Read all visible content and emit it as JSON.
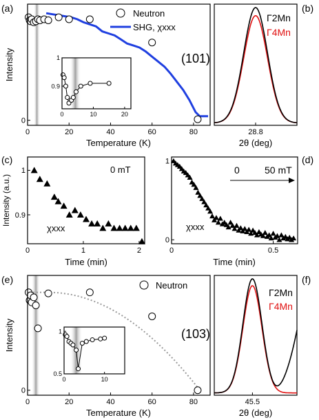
{
  "colors": {
    "shg": "#1f3fe0",
    "gamma4": "#e01010",
    "gamma2": "#000000",
    "dotted": "#999999",
    "shade": "#9a9a9a"
  },
  "panel_letters": [
    "(a)",
    "(b)",
    "(c)",
    "(d)",
    "(e)",
    "(f)"
  ],
  "chart_data": [
    {
      "id": "a",
      "type": "line+scatter",
      "xlabel": "Temperature (K)",
      "ylabel": "Intensity",
      "xlim": [
        0,
        88
      ],
      "ylim": [
        -0.05,
        1.15
      ],
      "xticks": [
        0,
        20,
        40,
        60,
        80
      ],
      "yticks": [
        0
      ],
      "legend": {
        "position": "top-right",
        "entries": [
          "Neutron",
          "SHG, χxxx"
        ]
      },
      "shaded_region_x": [
        3,
        6
      ],
      "series": [
        {
          "name": "Neutron",
          "marker": "open-circle",
          "x": [
            0.5,
            1,
            1.5,
            2,
            3,
            4,
            5,
            6,
            8,
            10,
            15,
            20,
            30,
            60,
            82
          ],
          "y": [
            1.02,
            0.99,
            0.98,
            1.0,
            0.97,
            0.98,
            1.0,
            0.99,
            1.0,
            0.99,
            1.02,
            1.0,
            1.0,
            0.77,
            0.01
          ]
        },
        {
          "name": "SHG, χxxx",
          "line": "solid",
          "x": [
            9,
            12,
            15,
            18,
            21,
            24,
            27,
            30,
            33,
            36,
            39,
            42,
            45,
            48,
            51,
            54,
            57,
            60,
            63,
            66,
            69,
            72,
            75,
            78,
            81,
            83,
            85,
            87
          ],
          "y": [
            1.06,
            1.05,
            1.04,
            1.03,
            1.02,
            1.0,
            0.97,
            0.95,
            0.93,
            0.88,
            0.86,
            0.84,
            0.8,
            0.76,
            0.74,
            0.72,
            0.68,
            0.63,
            0.58,
            0.53,
            0.46,
            0.38,
            0.3,
            0.2,
            0.08,
            0.04,
            0.04,
            0.04
          ]
        }
      ],
      "inset": {
        "xlim": [
          0,
          22
        ],
        "ylim": [
          0.82,
          1.0
        ],
        "xticks": [
          0,
          10,
          20
        ],
        "yticks": [
          1.0,
          0.9
        ],
        "shaded_region_x": [
          2.5,
          6
        ],
        "x": [
          0.3,
          0.7,
          1.2,
          1.7,
          2.2,
          3,
          3.6,
          4.5,
          6,
          9,
          15
        ],
        "y": [
          0.94,
          0.93,
          0.9,
          0.86,
          0.84,
          0.85,
          0.86,
          0.88,
          0.9,
          0.91,
          0.91
        ]
      }
    },
    {
      "id": "b",
      "type": "line",
      "xlabel": "2θ (deg)",
      "xticks": [
        28.8
      ],
      "xlim": [
        28.55,
        29.05
      ],
      "ylim": [
        0,
        1.05
      ],
      "peak_label": "(101)",
      "legend": {
        "position": "top-right",
        "entries": [
          "Γ2Mn",
          "Γ4Mn"
        ]
      },
      "series": [
        {
          "name": "Γ2Mn",
          "center": 28.8,
          "sigma": 0.072,
          "amplitude": 1.0
        },
        {
          "name": "Γ4Mn",
          "center": 28.8,
          "sigma": 0.072,
          "amplitude": 0.93
        }
      ]
    },
    {
      "id": "c",
      "type": "scatter",
      "xlabel": "Time (min)",
      "ylabel": "Intensity (a.u.)",
      "xlim": [
        0,
        2.1
      ],
      "ylim": [
        0.835,
        1.03
      ],
      "xticks": [
        0,
        1,
        2
      ],
      "yticks": [
        0.9,
        1.0
      ],
      "annotation": "0 mT",
      "series_label": "χxxx",
      "series": [
        {
          "name": "0 mT",
          "marker": "filled-triangle",
          "x": [
            0.12,
            0.22,
            0.35,
            0.48,
            0.55,
            0.65,
            0.75,
            0.85,
            0.95,
            1.05,
            1.15,
            1.25,
            1.35,
            1.45,
            1.55,
            1.65,
            1.75,
            1.85,
            1.95,
            2.05
          ],
          "y": [
            1.0,
            0.98,
            0.97,
            0.94,
            0.93,
            0.92,
            0.9,
            0.91,
            0.9,
            0.89,
            0.88,
            0.88,
            0.87,
            0.88,
            0.87,
            0.87,
            0.87,
            0.87,
            0.87,
            0.84
          ]
        }
      ]
    },
    {
      "id": "d",
      "type": "scatter",
      "xlabel": "Time (min)",
      "xlim": [
        0,
        0.62
      ],
      "ylim": [
        -0.05,
        1.05
      ],
      "xticks": [
        0.0,
        0.5
      ],
      "yticks": [
        0,
        1
      ],
      "annotation_start": "0",
      "annotation_end": "50 mT",
      "series_label": "χxxx",
      "series": [
        {
          "name": "50 mT",
          "marker": "filled-triangle",
          "x": [
            0.01,
            0.02,
            0.03,
            0.04,
            0.05,
            0.06,
            0.07,
            0.08,
            0.09,
            0.1,
            0.11,
            0.12,
            0.13,
            0.14,
            0.15,
            0.16,
            0.17,
            0.18,
            0.19,
            0.2,
            0.21,
            0.22,
            0.23,
            0.24,
            0.25,
            0.26,
            0.27,
            0.28,
            0.29,
            0.3,
            0.31,
            0.32,
            0.33,
            0.34,
            0.35,
            0.36,
            0.37,
            0.38,
            0.39,
            0.4,
            0.41,
            0.42,
            0.43,
            0.44,
            0.45,
            0.46,
            0.47,
            0.48,
            0.49,
            0.5,
            0.51,
            0.52,
            0.53,
            0.54,
            0.55,
            0.56,
            0.57,
            0.58,
            0.59,
            0.6
          ],
          "y": [
            1.0,
            0.97,
            0.95,
            0.93,
            0.9,
            0.87,
            0.85,
            0.82,
            0.79,
            0.73,
            0.7,
            0.66,
            0.6,
            0.56,
            0.52,
            0.48,
            0.44,
            0.4,
            0.36,
            0.3,
            0.25,
            0.28,
            0.22,
            0.27,
            0.2,
            0.22,
            0.19,
            0.16,
            0.22,
            0.18,
            0.14,
            0.18,
            0.12,
            0.15,
            0.11,
            0.14,
            0.1,
            0.13,
            0.08,
            0.12,
            0.09,
            0.06,
            0.1,
            0.07,
            0.05,
            0.09,
            0.04,
            0.06,
            0.02,
            0.08,
            0.03,
            0.05,
            0.0,
            0.06,
            0.02,
            0.04,
            0.01,
            0.03,
            0.0,
            0.02
          ]
        }
      ]
    },
    {
      "id": "e",
      "type": "line+scatter",
      "xlabel": "Temperature (K)",
      "ylabel": "Intensity",
      "xlim": [
        0,
        88
      ],
      "ylim": [
        -0.05,
        1.15
      ],
      "xticks": [
        0,
        20,
        40,
        60,
        80
      ],
      "yticks": [
        0
      ],
      "legend": {
        "position": "top-right",
        "entries": [
          "Neutron"
        ]
      },
      "shaded_region_x": [
        2,
        6
      ],
      "series": [
        {
          "name": "Neutron",
          "marker": "open-circle",
          "x": [
            0.5,
            1,
            1.5,
            2,
            3,
            4,
            5,
            10,
            30,
            60,
            82
          ],
          "y": [
            0.98,
            0.9,
            0.95,
            0.88,
            0.93,
            0.85,
            0.62,
            0.97,
            0.98,
            0.74,
            0.0
          ]
        },
        {
          "name": "guide",
          "line": "dotted",
          "form": "parabola",
          "x0": 10,
          "x_end": 83,
          "y_top": 0.98
        }
      ],
      "inset": {
        "xlim": [
          0,
          15
        ],
        "ylim": [
          0.5,
          1.05
        ],
        "xticks": [
          0,
          10
        ],
        "yticks": [
          1.0,
          0.5
        ],
        "shaded_region_x": [
          1.5,
          4.5
        ],
        "x": [
          0.3,
          0.7,
          1.2,
          1.7,
          2.2,
          3,
          3.5,
          4.5,
          5.5,
          7,
          9,
          10
        ],
        "y": [
          0.96,
          0.94,
          0.88,
          0.86,
          0.84,
          0.78,
          0.56,
          0.86,
          0.88,
          0.9,
          0.91,
          0.92
        ]
      }
    },
    {
      "id": "f",
      "type": "line",
      "xlabel": "2θ (deg)",
      "xticks": [
        45.5
      ],
      "xlim": [
        45.2,
        45.85
      ],
      "ylim": [
        0,
        1.05
      ],
      "peak_label": "(103)",
      "legend": {
        "position": "top-right",
        "entries": [
          "Γ2Mn",
          "Γ4Mn"
        ]
      },
      "series": [
        {
          "name": "Γ2Mn",
          "center": 45.5,
          "sigma": 0.075,
          "amplitude": 1.0,
          "rising_tail": true
        },
        {
          "name": "Γ4Mn",
          "center": 45.5,
          "sigma": 0.075,
          "amplitude": 0.94
        }
      ]
    }
  ]
}
